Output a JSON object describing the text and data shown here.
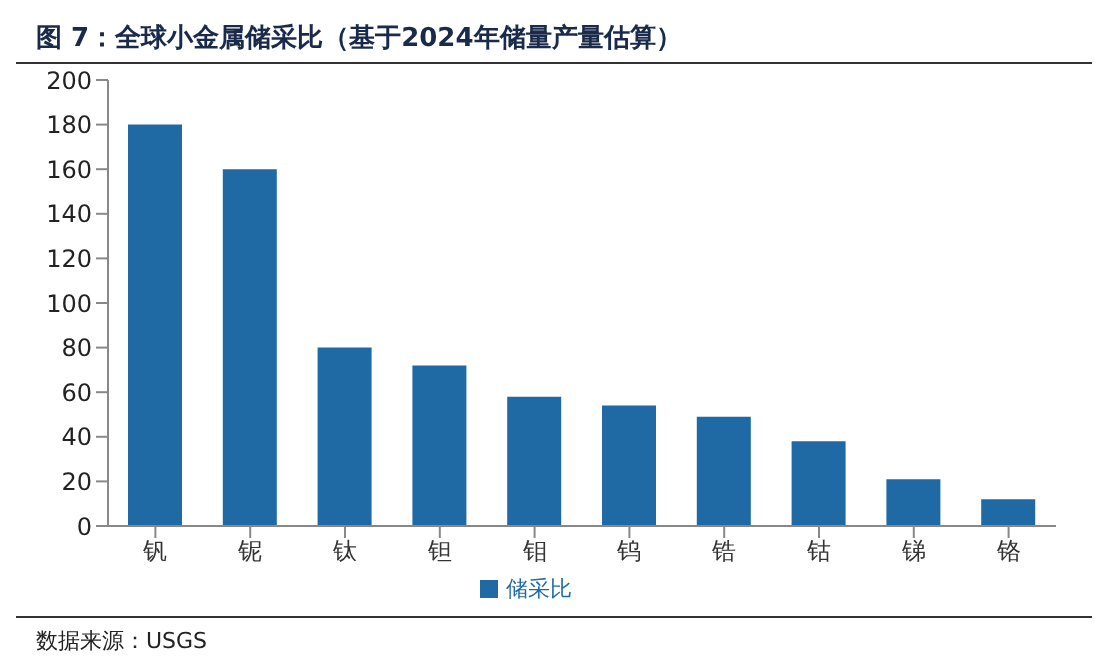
{
  "chart_data": {
    "type": "bar",
    "title": "图 7：全球小金属储采比（基于2024年储量产量估算）",
    "categories": [
      "钒",
      "铌",
      "钛",
      "钽",
      "钼",
      "钨",
      "锆",
      "钴",
      "锑",
      "铬"
    ],
    "series": [
      {
        "name": "储采比",
        "color": "#1f6aa5",
        "values": [
          180,
          160,
          80,
          72,
          58,
          54,
          49,
          38,
          21,
          12
        ]
      }
    ],
    "ylim": [
      0,
      200
    ],
    "yticks": [
      0,
      20,
      40,
      60,
      80,
      100,
      120,
      140,
      160,
      180,
      200
    ],
    "grid": false,
    "legend": "bottom",
    "annotations": [
      "数据来源：USGS"
    ]
  }
}
